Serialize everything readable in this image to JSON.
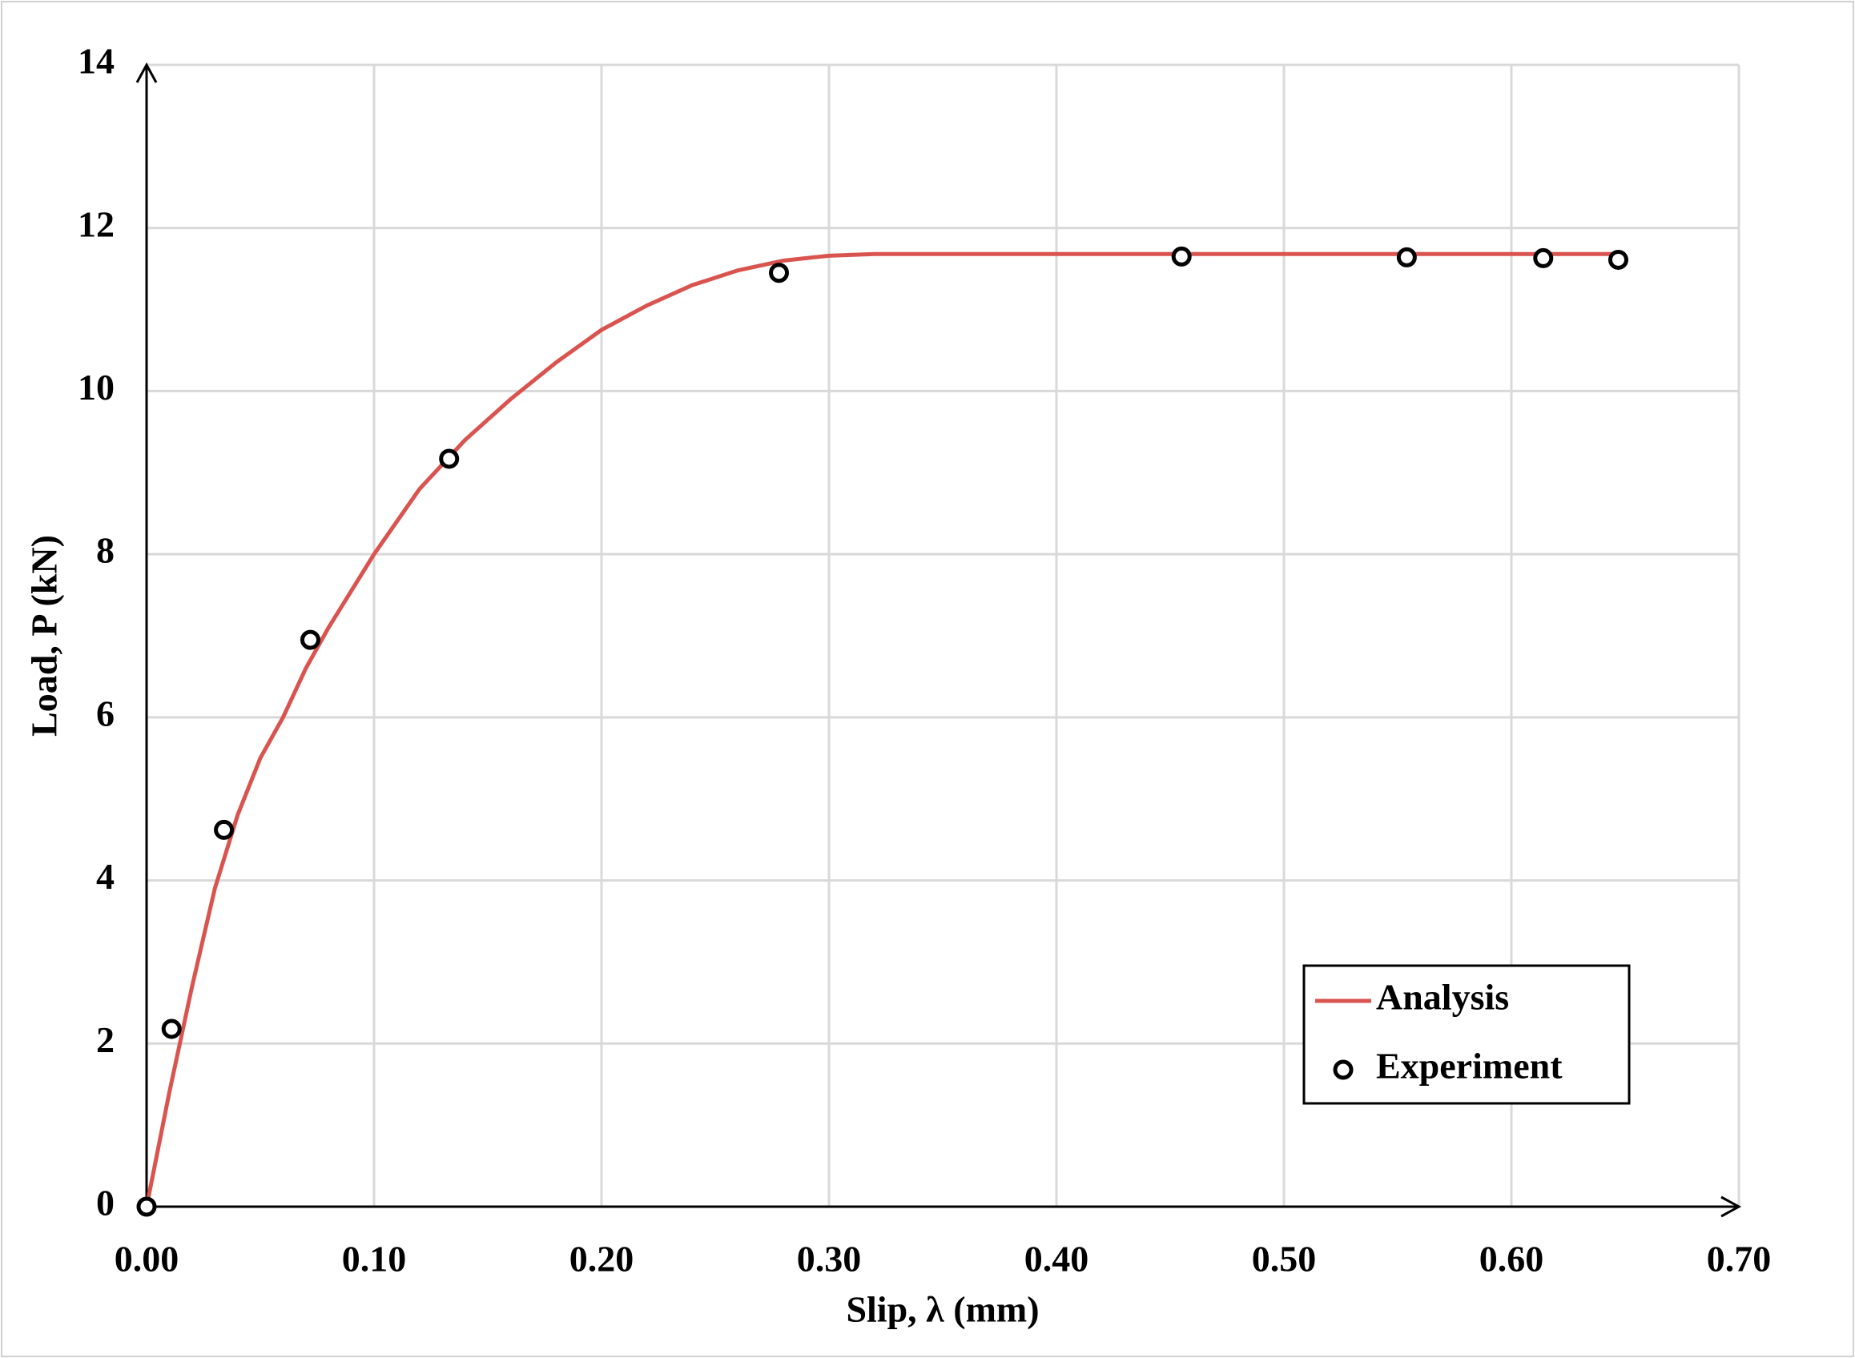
{
  "chart_data": {
    "type": "line",
    "xlabel": "Slip, λ (mm)",
    "ylabel": "Load, P (kN)",
    "xlim": [
      0,
      0.7
    ],
    "ylim": [
      0,
      14
    ],
    "xticks": [
      {
        "value": 0,
        "label": "0.00"
      },
      {
        "value": 0.1,
        "label": "0.10"
      },
      {
        "value": 0.2,
        "label": "0.20"
      },
      {
        "value": 0.3,
        "label": "0.30"
      },
      {
        "value": 0.4,
        "label": "0.40"
      },
      {
        "value": 0.5,
        "label": "0.50"
      },
      {
        "value": 0.6,
        "label": "0.60"
      },
      {
        "value": 0.7,
        "label": "0.70"
      }
    ],
    "yticks": [
      0,
      2,
      4,
      6,
      8,
      10,
      12,
      14
    ],
    "grid": true,
    "legend": "lower right",
    "series": [
      {
        "name": "Analysis",
        "color": "#d9534f",
        "style": "line",
        "x": [
          0,
          0.01,
          0.02,
          0.03,
          0.04,
          0.05,
          0.06,
          0.07,
          0.08,
          0.1,
          0.12,
          0.14,
          0.16,
          0.18,
          0.2,
          0.22,
          0.24,
          0.26,
          0.28,
          0.3,
          0.32,
          0.4,
          0.5,
          0.6,
          0.65
        ],
        "values": [
          0,
          1.4,
          2.7,
          3.9,
          4.8,
          5.5,
          6.0,
          6.6,
          7.1,
          8.0,
          8.8,
          9.4,
          9.9,
          10.35,
          10.75,
          11.05,
          11.3,
          11.48,
          11.6,
          11.66,
          11.68,
          11.68,
          11.68,
          11.68,
          11.68
        ]
      },
      {
        "name": "Experiment",
        "color": "#000000",
        "style": "marker",
        "x": [
          0,
          0.011,
          0.034,
          0.072,
          0.133,
          0.278,
          0.455,
          0.554,
          0.614,
          0.647
        ],
        "values": [
          0,
          2.18,
          4.62,
          6.95,
          9.17,
          11.45,
          11.65,
          11.64,
          11.63,
          11.61
        ]
      }
    ]
  }
}
